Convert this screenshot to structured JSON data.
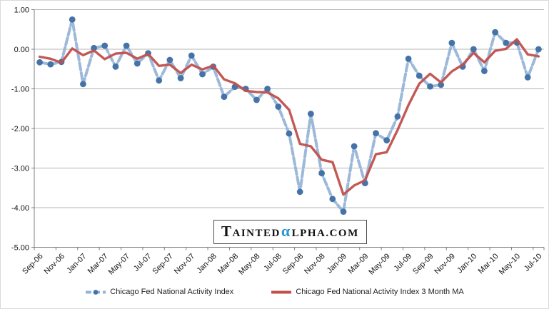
{
  "colors": {
    "background": "#ffffff",
    "frame_border": "#d9d9d9",
    "grid": "#b4b4b4",
    "axis": "#7f7f7f",
    "tick_text": "#141414",
    "legend_text": "#1f1f1f",
    "watermark_text": "#111111",
    "watermark_alpha": "#2498d5",
    "watermark_border": "#4d4d4d"
  },
  "watermark": {
    "part1": "T",
    "part2": "AINTED",
    "alpha": "α",
    "part3": "LPHA.COM"
  },
  "chart_data": {
    "type": "line",
    "title": "",
    "xlabel": "",
    "ylabel": "",
    "ylim": [
      -5,
      1
    ],
    "y_ticks": [
      1,
      0,
      -1,
      -2,
      -3,
      -4,
      -5
    ],
    "y_tick_labels": [
      "1.00",
      "0.00",
      "-1.00",
      "-2.00",
      "-3.00",
      "-4.00",
      "-5.00"
    ],
    "x_label_step": 2,
    "grid": true,
    "legend_position": "bottom",
    "x": [
      "Sep-06",
      "Oct-06",
      "Nov-06",
      "Dec-06",
      "Jan-07",
      "Feb-07",
      "Mar-07",
      "Apr-07",
      "May-07",
      "Jun-07",
      "Jul-07",
      "Aug-07",
      "Sep-07",
      "Oct-07",
      "Nov-07",
      "Dec-07",
      "Jan-08",
      "Feb-08",
      "Mar-08",
      "Apr-08",
      "May-08",
      "Jun-08",
      "Jul-08",
      "Aug-08",
      "Sep-08",
      "Oct-08",
      "Nov-08",
      "Dec-08",
      "Jan-09",
      "Feb-09",
      "Mar-09",
      "Apr-09",
      "May-09",
      "Jun-09",
      "Jul-09",
      "Aug-09",
      "Sep-09",
      "Oct-09",
      "Nov-09",
      "Dec-09",
      "Jan-10",
      "Feb-10",
      "Mar-10",
      "Apr-10",
      "May-10",
      "Jun-10",
      "Jul-10"
    ],
    "series": [
      {
        "name": "Chicago Fed National Activity Index",
        "style": "dashed",
        "marker": "circle",
        "color": "#95b3d7",
        "marker_color": "#4573a7",
        "values": [
          -0.33,
          -0.38,
          -0.32,
          0.75,
          -0.88,
          0.03,
          0.09,
          -0.44,
          0.09,
          -0.36,
          -0.1,
          -0.79,
          -0.27,
          -0.73,
          -0.16,
          -0.63,
          -0.44,
          -1.2,
          -0.95,
          -1.0,
          -1.28,
          -1.0,
          -1.45,
          -2.13,
          -3.6,
          -1.63,
          -3.13,
          -3.78,
          -4.1,
          -2.45,
          -3.38,
          -2.12,
          -2.3,
          -1.7,
          -0.24,
          -0.67,
          -0.94,
          -0.9,
          0.16,
          -0.44,
          0.0,
          -0.55,
          0.43,
          0.16,
          0.17,
          -0.71,
          0.0
        ]
      },
      {
        "name": "Chicago Fed National Activity Index 3 Month MA",
        "style": "solid",
        "marker": "none",
        "color": "#c0504d",
        "values": [
          -0.19,
          -0.24,
          -0.34,
          0.02,
          -0.15,
          -0.03,
          -0.25,
          -0.11,
          -0.09,
          -0.24,
          -0.12,
          -0.42,
          -0.39,
          -0.6,
          -0.39,
          -0.51,
          -0.41,
          -0.76,
          -0.86,
          -1.05,
          -1.08,
          -1.09,
          -1.24,
          -1.53,
          -2.39,
          -2.45,
          -2.79,
          -2.85,
          -3.67,
          -3.44,
          -3.31,
          -2.65,
          -2.6,
          -2.04,
          -1.41,
          -0.87,
          -0.62,
          -0.84,
          -0.56,
          -0.39,
          -0.09,
          -0.33,
          -0.04,
          0.01,
          0.25,
          -0.13,
          -0.18
        ]
      }
    ]
  }
}
